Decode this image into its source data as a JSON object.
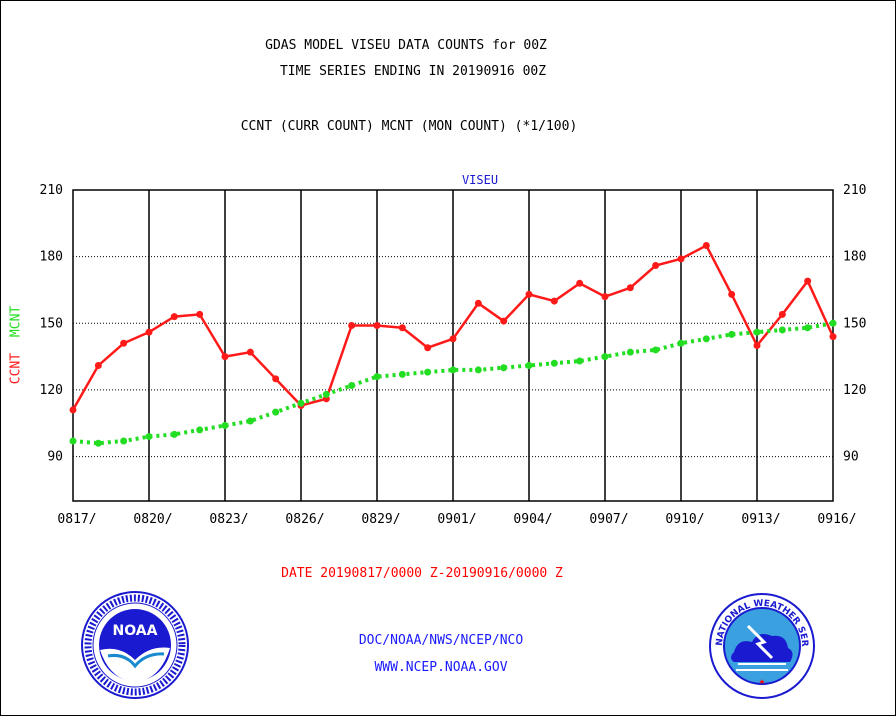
{
  "header": {
    "title_line1": "GDAS MODEL VISEU DATA COUNTS for 00Z",
    "title_line2": "TIME SERIES ENDING IN 20190916 00Z",
    "subtitle": "CCNT (CURR COUNT) MCNT (MON COUNT) (*1/100)"
  },
  "footer": {
    "date_range": "DATE 20190817/0000 Z-20190916/0000 Z",
    "org_line": "DOC/NOAA/NWS/NCEP/NCO",
    "url_line": "WWW.NCEP.NOAA.GOV"
  },
  "logos": {
    "noaa_text": "NOAA",
    "nws_ring_text": "NATIONAL WEATHER SERVICE"
  },
  "colors": {
    "ccnt": "#ff1a1a",
    "mcnt": "#22dd22",
    "title": "#000000",
    "date": "#ff0000",
    "footer": "#1a1aff",
    "panel": "#1a1ad0"
  },
  "chart_data": {
    "type": "line",
    "title": "VISEU",
    "ylabel_parts": [
      "CCNT",
      "MCNT"
    ],
    "ylim": [
      70,
      210
    ],
    "yticks": [
      90,
      120,
      150,
      180,
      210
    ],
    "xlim": [
      0,
      30
    ],
    "xtick_positions": [
      0,
      3,
      6,
      9,
      12,
      15,
      18,
      21,
      24,
      27,
      30
    ],
    "xtick_labels": [
      "0817/",
      "0820/",
      "0823/",
      "0826/",
      "0829/",
      "0901/",
      "0904/",
      "0907/",
      "0910/",
      "0913/",
      "0916/"
    ],
    "grid": true,
    "series": [
      {
        "name": "CCNT",
        "values": [
          111,
          131,
          141,
          146,
          153,
          154,
          135,
          137,
          125,
          113,
          116,
          149,
          149,
          148,
          139,
          143,
          159,
          151,
          163,
          160,
          168,
          162,
          166,
          176,
          179,
          185,
          163,
          140,
          154,
          169,
          144
        ]
      },
      {
        "name": "MCNT",
        "values": [
          97,
          96,
          97,
          99,
          100,
          102,
          104,
          106,
          110,
          114,
          118,
          122,
          126,
          127,
          128,
          129,
          129,
          130,
          131,
          132,
          133,
          135,
          137,
          138,
          141,
          143,
          145,
          146,
          147,
          148,
          150
        ]
      }
    ]
  }
}
